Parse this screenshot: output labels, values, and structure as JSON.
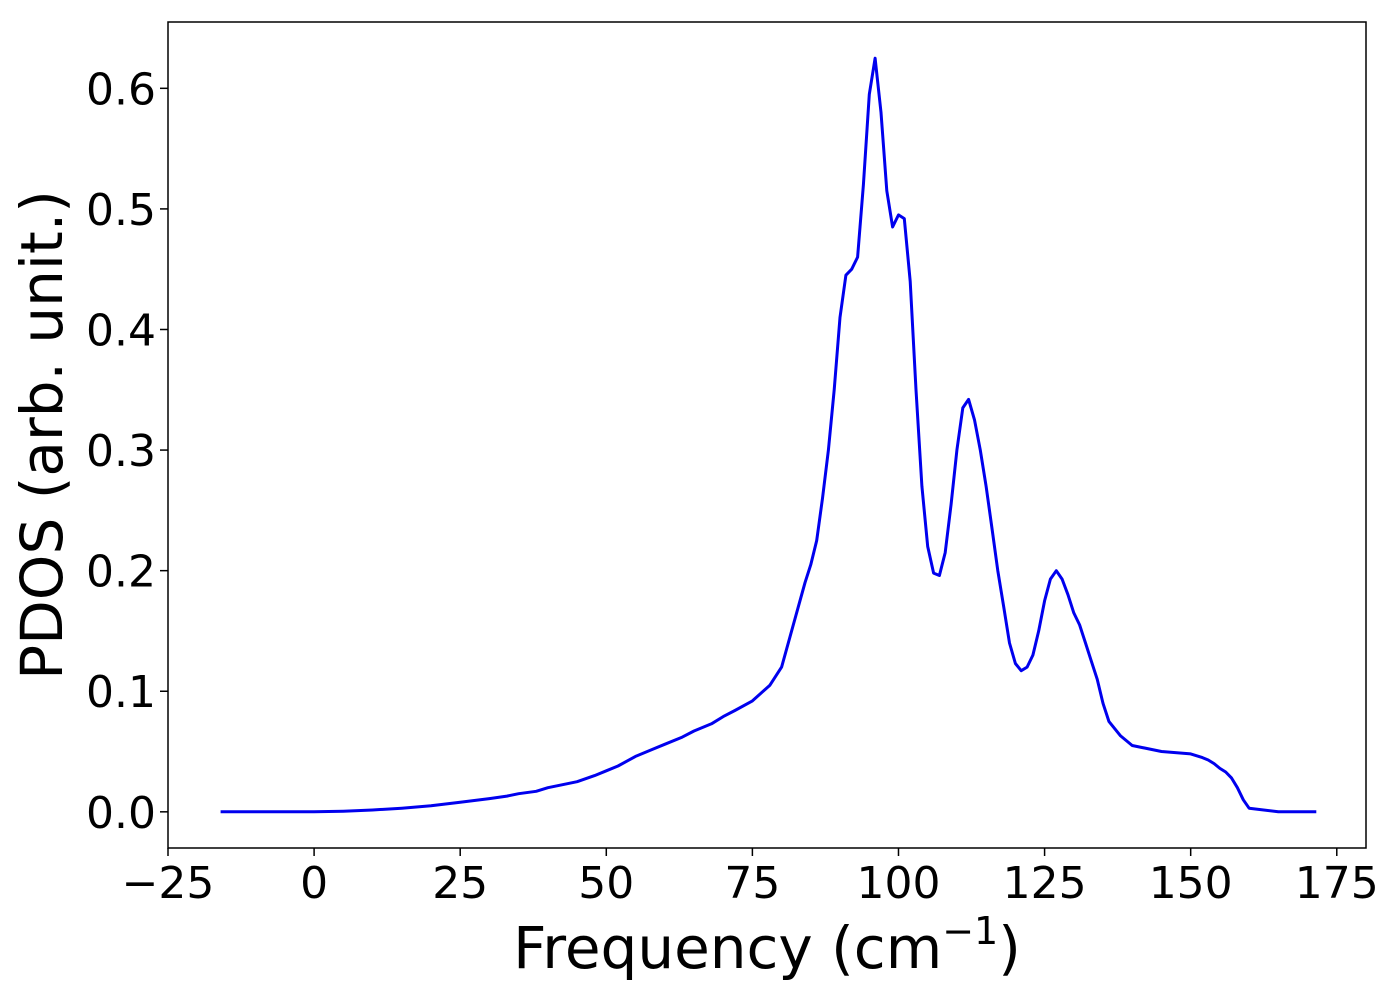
{
  "chart_data": {
    "type": "line",
    "xlabel": "Frequency (cm",
    "xlabel_sup": "−1",
    "xlabel_close": ")",
    "ylabel": "PDOS (arb. unit.)",
    "xlim": [
      -25,
      180
    ],
    "ylim": [
      -0.03,
      0.655
    ],
    "xticks": [
      -25,
      0,
      25,
      50,
      75,
      100,
      125,
      150,
      175
    ],
    "xtick_labels": [
      "−25",
      "0",
      "25",
      "50",
      "75",
      "100",
      "125",
      "150",
      "175"
    ],
    "yticks": [
      0.0,
      0.1,
      0.2,
      0.3,
      0.4,
      0.5,
      0.6
    ],
    "ytick_labels": [
      "0.0",
      "0.1",
      "0.2",
      "0.3",
      "0.4",
      "0.5",
      "0.6"
    ],
    "grid": false,
    "line_color": "#0000ee",
    "series": [
      {
        "x": [
          -16,
          -5,
          0,
          5,
          10,
          15,
          20,
          25,
          30,
          33,
          35,
          38,
          40,
          42,
          45,
          48,
          50,
          52,
          55,
          58,
          60,
          63,
          65,
          68,
          70,
          72,
          75,
          78,
          80,
          82,
          84,
          85,
          86,
          87,
          88,
          89,
          90,
          91,
          92,
          93,
          94,
          95,
          96,
          97,
          98,
          99,
          100,
          101,
          102,
          103,
          104,
          105,
          106,
          107,
          108,
          109,
          110,
          111,
          112,
          113,
          114,
          115,
          116,
          117,
          118,
          119,
          120,
          121,
          122,
          123,
          124,
          125,
          126,
          127,
          128,
          129,
          130,
          131,
          132,
          133,
          134,
          135,
          136,
          138,
          140,
          145,
          150,
          152,
          153,
          154,
          155,
          156,
          157,
          158,
          159,
          160,
          165,
          171.5
        ],
        "y": [
          0.0,
          0.0,
          0.0,
          0.0005,
          0.0015,
          0.003,
          0.005,
          0.008,
          0.011,
          0.013,
          0.015,
          0.017,
          0.02,
          0.022,
          0.025,
          0.03,
          0.034,
          0.038,
          0.046,
          0.052,
          0.056,
          0.062,
          0.067,
          0.073,
          0.079,
          0.084,
          0.092,
          0.105,
          0.12,
          0.155,
          0.19,
          0.205,
          0.225,
          0.26,
          0.3,
          0.35,
          0.41,
          0.445,
          0.45,
          0.46,
          0.52,
          0.595,
          0.625,
          0.58,
          0.515,
          0.485,
          0.495,
          0.492,
          0.44,
          0.35,
          0.27,
          0.22,
          0.198,
          0.196,
          0.215,
          0.255,
          0.3,
          0.335,
          0.342,
          0.325,
          0.3,
          0.27,
          0.235,
          0.2,
          0.17,
          0.14,
          0.123,
          0.117,
          0.12,
          0.13,
          0.15,
          0.175,
          0.193,
          0.2,
          0.193,
          0.18,
          0.165,
          0.155,
          0.14,
          0.125,
          0.11,
          0.09,
          0.075,
          0.063,
          0.055,
          0.05,
          0.048,
          0.045,
          0.043,
          0.04,
          0.036,
          0.033,
          0.028,
          0.02,
          0.01,
          0.003,
          0.0,
          0.0
        ]
      }
    ]
  }
}
